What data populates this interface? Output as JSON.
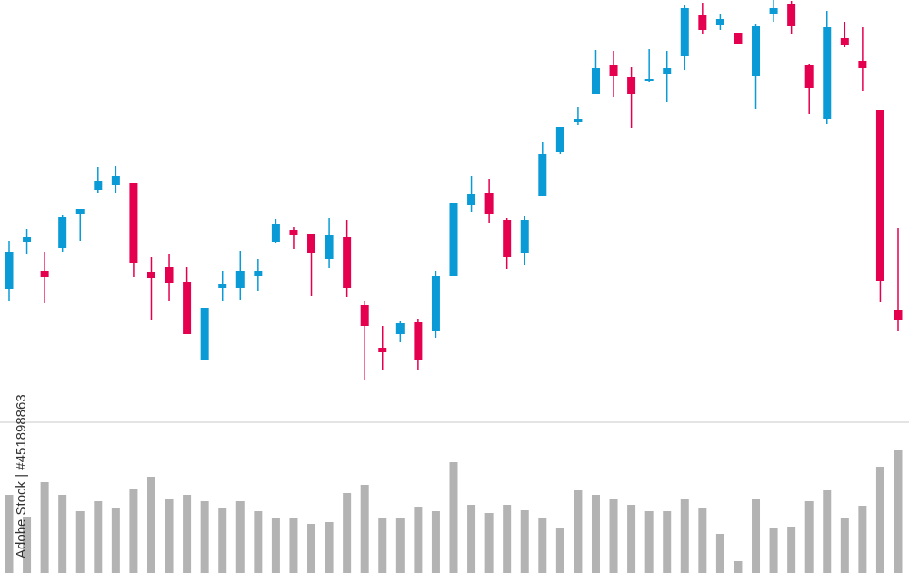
{
  "chart_data": [
    {
      "type": "candlestick",
      "up_color": "#0a9ad6",
      "down_color": "#e5004f",
      "ylim": [
        0,
        465
      ],
      "annotation": "Adobe Stock | #451898863",
      "open": [
        147,
        198,
        167,
        192,
        229,
        256,
        261,
        263,
        165,
        171,
        155,
        69,
        148,
        148,
        161,
        198,
        212,
        207,
        180,
        204,
        129,
        82,
        97,
        110,
        101,
        161,
        239,
        253,
        223,
        186,
        249,
        298,
        331,
        361,
        393,
        380,
        376,
        383,
        403,
        448,
        437,
        429,
        381,
        450,
        461,
        393,
        334,
        423,
        398,
        344,
        124
      ],
      "high": [
        200,
        213,
        187,
        228,
        235,
        281,
        282,
        263,
        182,
        185,
        171,
        126,
        167,
        189,
        180,
        224,
        215,
        207,
        225,
        223,
        133,
        106,
        112,
        114,
        167,
        242,
        271,
        268,
        225,
        227,
        309,
        325,
        347,
        410,
        409,
        391,
        411,
        409,
        460,
        462,
        450,
        429,
        439,
        465,
        464,
        395,
        453,
        441,
        435,
        344,
        214
      ],
      "low": [
        133,
        185,
        131,
        187,
        200,
        252,
        253,
        160,
        113,
        133,
        97,
        69,
        133,
        135,
        145,
        197,
        191,
        139,
        170,
        138,
        47,
        57,
        88,
        57,
        93,
        161,
        232,
        219,
        169,
        173,
        249,
        295,
        327,
        361,
        358,
        324,
        375,
        353,
        388,
        428,
        432,
        416,
        345,
        441,
        428,
        339,
        328,
        413,
        365,
        132,
        101
      ],
      "close": [
        187,
        204,
        160,
        226,
        235,
        266,
        271,
        175,
        159,
        153,
        97,
        126,
        152,
        167,
        167,
        218,
        206,
        186,
        206,
        148,
        106,
        77,
        109,
        69,
        161,
        242,
        251,
        229,
        182,
        223,
        295,
        325,
        334,
        390,
        381,
        361,
        378,
        390,
        456,
        432,
        444,
        416,
        436,
        456,
        436,
        368,
        435,
        415,
        390,
        156,
        113
      ]
    },
    {
      "type": "bar",
      "color": "#b3b3b3",
      "ylim": [
        0,
        166
      ],
      "values": [
        86,
        62,
        100,
        86,
        68,
        79,
        72,
        93,
        106,
        81,
        86,
        79,
        72,
        79,
        68,
        61,
        61,
        54,
        56,
        88,
        97,
        61,
        61,
        73,
        68,
        122,
        75,
        66,
        75,
        69,
        61,
        50,
        91,
        86,
        82,
        75,
        68,
        68,
        82,
        72,
        43,
        13,
        82,
        50,
        51,
        79,
        91,
        61,
        74,
        117,
        136
      ]
    }
  ]
}
